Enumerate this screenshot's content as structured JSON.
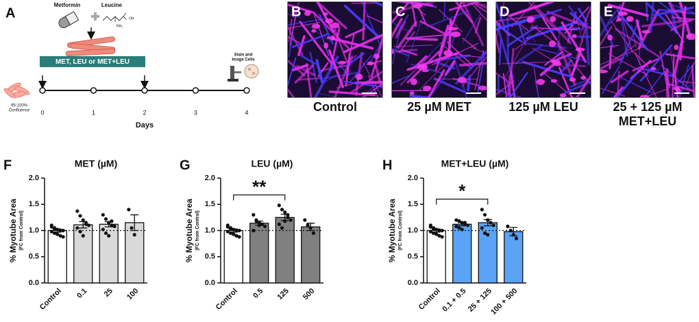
{
  "panel_a": {
    "letter": "A",
    "drug1": "Metformin",
    "drug2": "Leucine",
    "group1": "OH",
    "group2": "NH₂",
    "treatment": "MET, LEU or MET+LEU",
    "start_note": [
      "95-100%",
      "Confluence"
    ],
    "end_note": [
      "Stain and",
      "Image Cells"
    ],
    "days": [
      0,
      1,
      2,
      3,
      4
    ],
    "axis_label": "Days"
  },
  "images": [
    {
      "letter": "B",
      "label": [
        "Control"
      ]
    },
    {
      "letter": "C",
      "label": [
        "25 µM MET"
      ]
    },
    {
      "letter": "D",
      "label": [
        "125 µM LEU"
      ]
    },
    {
      "letter": "E",
      "label": [
        "25 + 125 µM",
        "MET+LEU"
      ]
    }
  ],
  "chart_data": [
    {
      "type": "bar",
      "letter": "F",
      "title": "MET (µM)",
      "y_label": "% Myotube Area",
      "y_sublabel": "(FC from Control)",
      "categories": [
        "Control",
        "0.1",
        "25",
        "100"
      ],
      "values": [
        1.0,
        1.11,
        1.12,
        1.15
      ],
      "errors": [
        0.03,
        0.06,
        0.05,
        0.15
      ],
      "points": [
        [
          1.1,
          1.05,
          1.02,
          1.0,
          1.0,
          0.98,
          0.95,
          0.93,
          0.9,
          0.88,
          1.07,
          1.03
        ],
        [
          1.37,
          1.28,
          1.2,
          1.12,
          1.1,
          1.05,
          0.98,
          0.9,
          1.15
        ],
        [
          1.3,
          1.22,
          1.15,
          1.1,
          1.08,
          1.02,
          0.95,
          0.9,
          1.18
        ],
        [
          1.4,
          1.05,
          0.92
        ]
      ],
      "colors": [
        "#ffffff",
        "#d9d9d9",
        "#d9d9d9",
        "#d9d9d9"
      ],
      "ylim": [
        0,
        2
      ],
      "yticks": [
        {
          "value": 0,
          "label": "0.0"
        },
        {
          "value": 0.5,
          "label": "0.5"
        },
        {
          "value": 1,
          "label": "1.0"
        },
        {
          "value": 1.5,
          "label": "1.5"
        },
        {
          "value": 2,
          "label": "2.0"
        }
      ],
      "reference_line": 1
    },
    {
      "type": "bar",
      "letter": "G",
      "title": "LEU (µM)",
      "y_label": "% Myotube Area",
      "y_sublabel": "(FC from Control)",
      "categories": [
        "Control",
        "0.5",
        "125",
        "500"
      ],
      "values": [
        1.0,
        1.14,
        1.25,
        1.07
      ],
      "errors": [
        0.03,
        0.04,
        0.06,
        0.07
      ],
      "points": [
        [
          1.1,
          1.05,
          1.02,
          1.0,
          1.0,
          0.98,
          0.95,
          0.93,
          0.9,
          0.88,
          1.07,
          1.03
        ],
        [
          1.3,
          1.2,
          1.15,
          1.12,
          1.08,
          1.0,
          1.18,
          1.1
        ],
        [
          1.48,
          1.4,
          1.35,
          1.25,
          1.2,
          1.12,
          1.05,
          1.18,
          1.3
        ],
        [
          1.2,
          1.1,
          1.05,
          0.95
        ]
      ],
      "colors": [
        "#ffffff",
        "#808080",
        "#808080",
        "#808080"
      ],
      "ylim": [
        0,
        2
      ],
      "yticks": [
        {
          "value": 0,
          "label": "0.0"
        },
        {
          "value": 0.5,
          "label": "0.5"
        },
        {
          "value": 1,
          "label": "1.0"
        },
        {
          "value": 1.5,
          "label": "1.5"
        },
        {
          "value": 2,
          "label": "2.0"
        }
      ],
      "reference_line": 1,
      "significance": {
        "label": "**",
        "from": 0,
        "to": 2
      }
    },
    {
      "type": "bar",
      "letter": "H",
      "title": "MET+LEU (µM)",
      "y_label": "% Myotube Area",
      "y_sublabel": "(FC from Control)",
      "categories": [
        "Control",
        "0.1 + 0.5",
        "25 + 125",
        "100 + 500"
      ],
      "values": [
        1.0,
        1.12,
        1.15,
        0.98
      ],
      "errors": [
        0.03,
        0.03,
        0.06,
        0.08
      ],
      "points": [
        [
          1.1,
          1.05,
          1.02,
          1.0,
          1.0,
          0.98,
          0.95,
          0.93,
          0.9,
          0.88,
          1.07,
          1.03
        ],
        [
          1.2,
          1.18,
          1.15,
          1.12,
          1.1,
          1.08,
          1.05,
          1.02,
          1.15
        ],
        [
          1.4,
          1.3,
          1.2,
          1.15,
          1.1,
          1.05,
          0.95,
          0.92
        ],
        [
          1.08,
          1.0,
          0.92,
          0.85
        ]
      ],
      "colors": [
        "#ffffff",
        "#5ba3f5",
        "#5ba3f5",
        "#5ba3f5"
      ],
      "ylim": [
        0,
        2
      ],
      "yticks": [
        {
          "value": 0,
          "label": "0.0"
        },
        {
          "value": 0.5,
          "label": "0.5"
        },
        {
          "value": 1,
          "label": "1.0"
        },
        {
          "value": 1.5,
          "label": "1.5"
        },
        {
          "value": 2,
          "label": "2.0"
        }
      ],
      "reference_line": 1,
      "significance": {
        "label": "*",
        "from": 0,
        "to": 2
      }
    }
  ]
}
